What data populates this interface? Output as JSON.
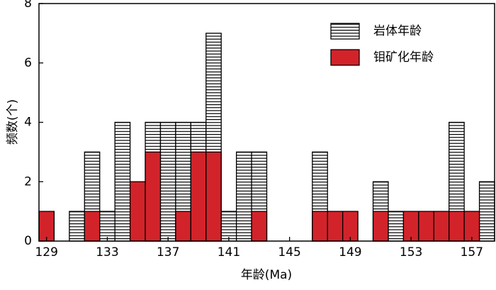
{
  "chart_data": {
    "type": "bar",
    "x_label": "年龄(Ma)",
    "y_label": "频数(个)",
    "x": [
      129,
      130,
      131,
      132,
      133,
      134,
      135,
      136,
      137,
      138,
      139,
      140,
      141,
      142,
      143,
      144,
      145,
      146,
      147,
      148,
      149,
      150,
      151,
      152,
      153,
      154,
      155,
      156,
      157,
      158
    ],
    "series": [
      {
        "name": "岩体年龄",
        "color": "#000000",
        "pattern": "horizontal-lines",
        "values": [
          0,
          0,
          1,
          3,
          1,
          4,
          0,
          4,
          4,
          4,
          4,
          7,
          1,
          3,
          3,
          0,
          0,
          0,
          3,
          0,
          0,
          0,
          2,
          1,
          0,
          0,
          0,
          4,
          0,
          2
        ]
      },
      {
        "name": "钼矿化年龄",
        "color": "#d2232a",
        "values": [
          1,
          0,
          0,
          1,
          0,
          0,
          2,
          3,
          0,
          1,
          3,
          3,
          0,
          0,
          1,
          0,
          0,
          0,
          1,
          1,
          1,
          0,
          1,
          0,
          1,
          1,
          1,
          1,
          1,
          0
        ]
      }
    ],
    "xlim": [
      128.5,
      158.5
    ],
    "xticks": [
      129,
      133,
      137,
      141,
      145,
      149,
      153,
      157
    ],
    "ylim": [
      0,
      8
    ],
    "yticks": [
      0,
      2,
      4,
      6,
      8
    ],
    "legend": "upper-right"
  }
}
